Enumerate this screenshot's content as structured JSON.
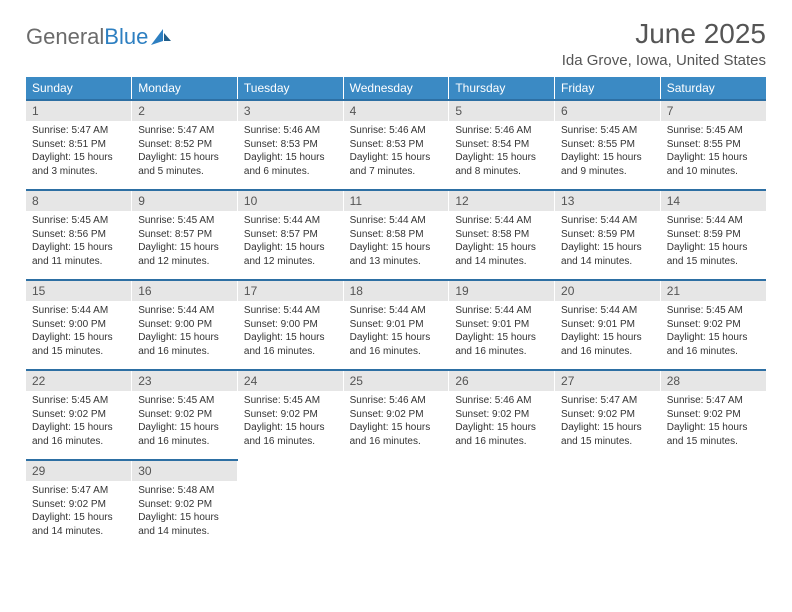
{
  "brand": {
    "part1": "General",
    "part2": "Blue"
  },
  "title": {
    "month": "June 2025",
    "location": "Ida Grove, Iowa, United States"
  },
  "colors": {
    "header_bar": "#3b8ac4",
    "daynum_bg": "#e6e6e6",
    "daynum_border_top": "#2d6fa3",
    "text_muted": "#555555",
    "brand_gray": "#6b6b6b",
    "brand_blue": "#2d7fc1",
    "background": "#ffffff"
  },
  "calendar": {
    "days_of_week": [
      "Sunday",
      "Monday",
      "Tuesday",
      "Wednesday",
      "Thursday",
      "Friday",
      "Saturday"
    ],
    "cell_font_size_pt": 8,
    "daynum_font_size_pt": 9,
    "dow_font_size_pt": 9,
    "weeks": [
      [
        {
          "n": "1",
          "sunrise": "5:47 AM",
          "sunset": "8:51 PM",
          "daylight": "15 hours and 3 minutes."
        },
        {
          "n": "2",
          "sunrise": "5:47 AM",
          "sunset": "8:52 PM",
          "daylight": "15 hours and 5 minutes."
        },
        {
          "n": "3",
          "sunrise": "5:46 AM",
          "sunset": "8:53 PM",
          "daylight": "15 hours and 6 minutes."
        },
        {
          "n": "4",
          "sunrise": "5:46 AM",
          "sunset": "8:53 PM",
          "daylight": "15 hours and 7 minutes."
        },
        {
          "n": "5",
          "sunrise": "5:46 AM",
          "sunset": "8:54 PM",
          "daylight": "15 hours and 8 minutes."
        },
        {
          "n": "6",
          "sunrise": "5:45 AM",
          "sunset": "8:55 PM",
          "daylight": "15 hours and 9 minutes."
        },
        {
          "n": "7",
          "sunrise": "5:45 AM",
          "sunset": "8:55 PM",
          "daylight": "15 hours and 10 minutes."
        }
      ],
      [
        {
          "n": "8",
          "sunrise": "5:45 AM",
          "sunset": "8:56 PM",
          "daylight": "15 hours and 11 minutes."
        },
        {
          "n": "9",
          "sunrise": "5:45 AM",
          "sunset": "8:57 PM",
          "daylight": "15 hours and 12 minutes."
        },
        {
          "n": "10",
          "sunrise": "5:44 AM",
          "sunset": "8:57 PM",
          "daylight": "15 hours and 12 minutes."
        },
        {
          "n": "11",
          "sunrise": "5:44 AM",
          "sunset": "8:58 PM",
          "daylight": "15 hours and 13 minutes."
        },
        {
          "n": "12",
          "sunrise": "5:44 AM",
          "sunset": "8:58 PM",
          "daylight": "15 hours and 14 minutes."
        },
        {
          "n": "13",
          "sunrise": "5:44 AM",
          "sunset": "8:59 PM",
          "daylight": "15 hours and 14 minutes."
        },
        {
          "n": "14",
          "sunrise": "5:44 AM",
          "sunset": "8:59 PM",
          "daylight": "15 hours and 15 minutes."
        }
      ],
      [
        {
          "n": "15",
          "sunrise": "5:44 AM",
          "sunset": "9:00 PM",
          "daylight": "15 hours and 15 minutes."
        },
        {
          "n": "16",
          "sunrise": "5:44 AM",
          "sunset": "9:00 PM",
          "daylight": "15 hours and 16 minutes."
        },
        {
          "n": "17",
          "sunrise": "5:44 AM",
          "sunset": "9:00 PM",
          "daylight": "15 hours and 16 minutes."
        },
        {
          "n": "18",
          "sunrise": "5:44 AM",
          "sunset": "9:01 PM",
          "daylight": "15 hours and 16 minutes."
        },
        {
          "n": "19",
          "sunrise": "5:44 AM",
          "sunset": "9:01 PM",
          "daylight": "15 hours and 16 minutes."
        },
        {
          "n": "20",
          "sunrise": "5:44 AM",
          "sunset": "9:01 PM",
          "daylight": "15 hours and 16 minutes."
        },
        {
          "n": "21",
          "sunrise": "5:45 AM",
          "sunset": "9:02 PM",
          "daylight": "15 hours and 16 minutes."
        }
      ],
      [
        {
          "n": "22",
          "sunrise": "5:45 AM",
          "sunset": "9:02 PM",
          "daylight": "15 hours and 16 minutes."
        },
        {
          "n": "23",
          "sunrise": "5:45 AM",
          "sunset": "9:02 PM",
          "daylight": "15 hours and 16 minutes."
        },
        {
          "n": "24",
          "sunrise": "5:45 AM",
          "sunset": "9:02 PM",
          "daylight": "15 hours and 16 minutes."
        },
        {
          "n": "25",
          "sunrise": "5:46 AM",
          "sunset": "9:02 PM",
          "daylight": "15 hours and 16 minutes."
        },
        {
          "n": "26",
          "sunrise": "5:46 AM",
          "sunset": "9:02 PM",
          "daylight": "15 hours and 16 minutes."
        },
        {
          "n": "27",
          "sunrise": "5:47 AM",
          "sunset": "9:02 PM",
          "daylight": "15 hours and 15 minutes."
        },
        {
          "n": "28",
          "sunrise": "5:47 AM",
          "sunset": "9:02 PM",
          "daylight": "15 hours and 15 minutes."
        }
      ],
      [
        {
          "n": "29",
          "sunrise": "5:47 AM",
          "sunset": "9:02 PM",
          "daylight": "15 hours and 14 minutes."
        },
        {
          "n": "30",
          "sunrise": "5:48 AM",
          "sunset": "9:02 PM",
          "daylight": "15 hours and 14 minutes."
        },
        null,
        null,
        null,
        null,
        null
      ]
    ],
    "labels": {
      "sunrise": "Sunrise:",
      "sunset": "Sunset:",
      "daylight": "Daylight:"
    }
  }
}
